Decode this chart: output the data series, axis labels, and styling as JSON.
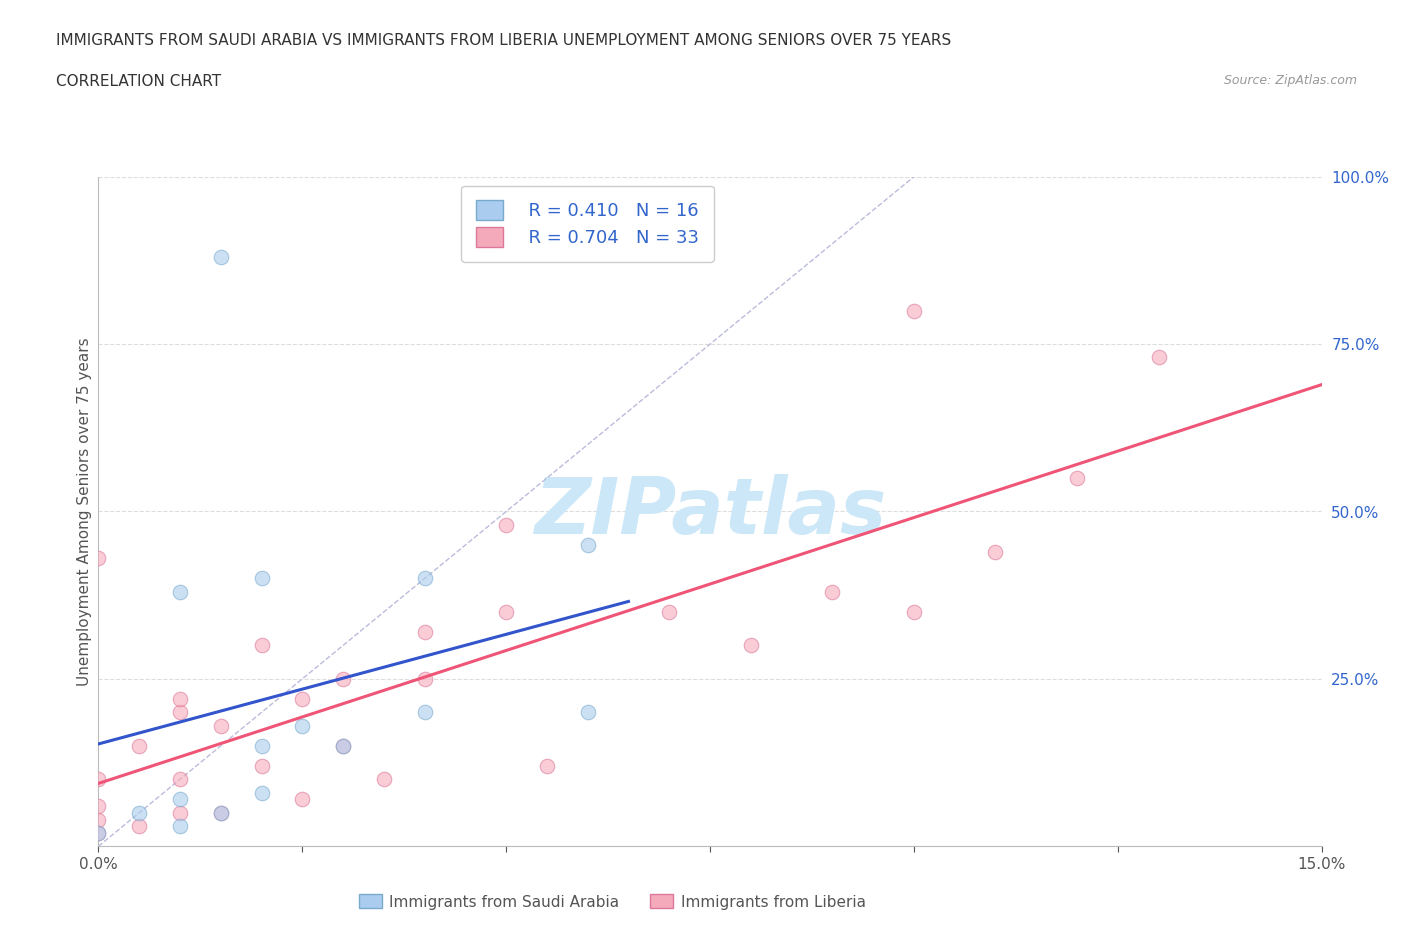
{
  "title_line1": "IMMIGRANTS FROM SAUDI ARABIA VS IMMIGRANTS FROM LIBERIA UNEMPLOYMENT AMONG SENIORS OVER 75 YEARS",
  "title_line2": "CORRELATION CHART",
  "source_text": "Source: ZipAtlas.com",
  "ylabel": "Unemployment Among Seniors over 75 years",
  "xlim": [
    0.0,
    0.15
  ],
  "ylim": [
    0.0,
    1.0
  ],
  "xtick_positions": [
    0.0,
    0.025,
    0.05,
    0.075,
    0.1,
    0.125,
    0.15
  ],
  "xtick_labels": [
    "0.0%",
    "",
    "",
    "",
    "",
    "",
    "15.0%"
  ],
  "ytick_positions": [
    0.0,
    0.25,
    0.5,
    0.75,
    1.0
  ],
  "ytick_labels": [
    "",
    "25.0%",
    "50.0%",
    "75.0%",
    "100.0%"
  ],
  "saudi_color": "#aaccee",
  "saudi_edge_color": "#77aacc",
  "liberia_color": "#f5aabb",
  "liberia_edge_color": "#dd7799",
  "saudi_R": 0.41,
  "saudi_N": 16,
  "liberia_R": 0.704,
  "liberia_N": 33,
  "saudi_line_color": "#3355cc",
  "liberia_line_color": "#ee5577",
  "ref_line_color": "#bbbbdd",
  "legend_R_color": "#3366cc",
  "watermark_text": "ZIPatlas",
  "watermark_color": "#cce8f8",
  "saudi_x": [
    0.0,
    0.005,
    0.01,
    0.01,
    0.01,
    0.015,
    0.015,
    0.02,
    0.02,
    0.02,
    0.025,
    0.03,
    0.04,
    0.04,
    0.06,
    0.06
  ],
  "saudi_y": [
    0.02,
    0.05,
    0.03,
    0.07,
    0.38,
    0.05,
    0.88,
    0.08,
    0.15,
    0.4,
    0.18,
    0.15,
    0.2,
    0.4,
    0.2,
    0.45
  ],
  "liberia_x": [
    0.0,
    0.0,
    0.0,
    0.0,
    0.0,
    0.005,
    0.005,
    0.01,
    0.01,
    0.01,
    0.01,
    0.015,
    0.015,
    0.02,
    0.02,
    0.025,
    0.025,
    0.03,
    0.03,
    0.035,
    0.04,
    0.04,
    0.05,
    0.05,
    0.055,
    0.07,
    0.08,
    0.09,
    0.1,
    0.1,
    0.11,
    0.12,
    0.13
  ],
  "liberia_y": [
    0.02,
    0.04,
    0.06,
    0.1,
    0.43,
    0.03,
    0.15,
    0.05,
    0.1,
    0.2,
    0.22,
    0.05,
    0.18,
    0.12,
    0.3,
    0.07,
    0.22,
    0.15,
    0.25,
    0.1,
    0.25,
    0.32,
    0.35,
    0.48,
    0.12,
    0.35,
    0.3,
    0.38,
    0.35,
    0.8,
    0.44,
    0.55,
    0.73
  ],
  "marker_size": 110,
  "marker_alpha": 0.6,
  "saudi_line_xrange": [
    0.0,
    0.065
  ],
  "liberia_line_xrange": [
    0.0,
    0.15
  ]
}
